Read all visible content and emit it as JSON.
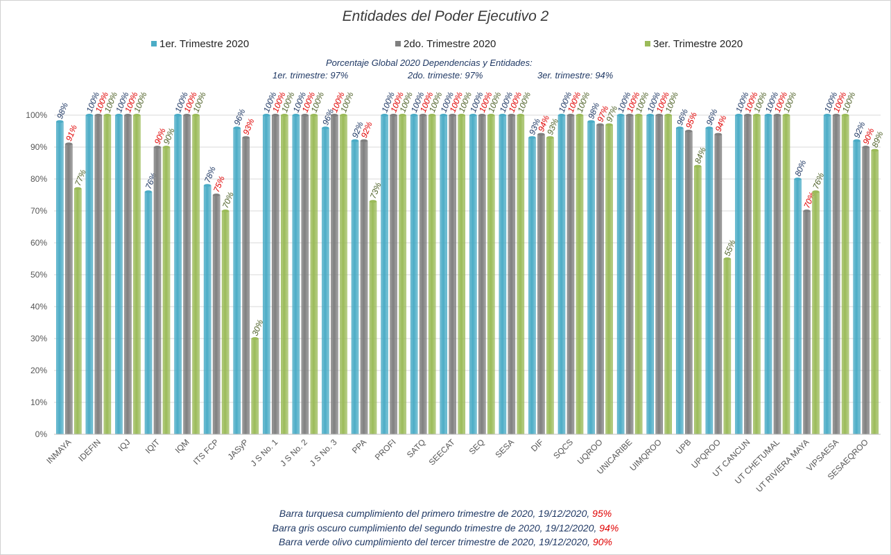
{
  "chart_data": {
    "type": "bar",
    "title": "Entidades del Poder Ejecutivo 2",
    "categories": [
      "INMAYA",
      "IDEFIN",
      "IQJ",
      "IQIT",
      "IQM",
      "ITS FCP",
      "JASyP",
      "J S No. 1",
      "J S No. 2",
      "J S No. 3",
      "PPA",
      "PROFI",
      "SATQ",
      "SEECAT",
      "SEQ",
      "SESA",
      "DIF",
      "SQCS",
      "UQROO",
      "UNICARIBE",
      "UIMQROO",
      "UPB",
      "UPQROO",
      "UT CANCUN",
      "UT CHETUMAL",
      "UT RIVIERA MAYA",
      "VIPSAESA",
      "SESAEQROO"
    ],
    "series": [
      {
        "name": "1er. Trimestre 2020",
        "color": "#4bacc6",
        "label_color": "#1f3864",
        "values": [
          98,
          100,
          100,
          76,
          100,
          78,
          96,
          100,
          100,
          96,
          92,
          100,
          100,
          100,
          100,
          100,
          93,
          100,
          98,
          100,
          100,
          96,
          96,
          100,
          100,
          80,
          100,
          92
        ]
      },
      {
        "name": "2do. Trimestre 2020",
        "color": "#7f7f7f",
        "label_color": "#e00000",
        "values": [
          91,
          100,
          100,
          90,
          100,
          75,
          93,
          100,
          100,
          100,
          92,
          100,
          100,
          100,
          100,
          100,
          94,
          100,
          97,
          100,
          100,
          95,
          94,
          100,
          100,
          70,
          100,
          90
        ]
      },
      {
        "name": "3er. Trimestre 2020",
        "color": "#9bbb59",
        "label_color": "#4f6228",
        "values": [
          77,
          100,
          100,
          90,
          100,
          70,
          30,
          100,
          100,
          100,
          73,
          100,
          100,
          100,
          100,
          100,
          93,
          100,
          97,
          100,
          100,
          84,
          55,
          100,
          100,
          76,
          100,
          89
        ]
      }
    ],
    "y_ticks": [
      "0%",
      "10%",
      "20%",
      "30%",
      "40%",
      "50%",
      "60%",
      "70%",
      "80%",
      "90%",
      "100%"
    ],
    "ylim": [
      0,
      100
    ],
    "grid": true,
    "legend_position": "top"
  },
  "notes": {
    "line1": "Porcentaje Global  2020 Dependencias y Entidades:",
    "q1": "1er. trimestre: 97%",
    "q2": "2do. trimeste: 97%",
    "q3": "3er. trimestre: 94%"
  },
  "footer": {
    "line1_text": "Barra turquesa cumplimiento del primero trimestre de 2020,  19/12/2020, ",
    "line1_value": "95%",
    "line2_text": "Barra gris oscuro cumplimiento del segundo trimestre de 2020,  19/12/2020,  ",
    "line2_value": "94%",
    "line3_text": "Barra verde olivo cumplimiento del tercer trimestre de 2020, 19/12/2020, ",
    "line3_value": "90%"
  }
}
